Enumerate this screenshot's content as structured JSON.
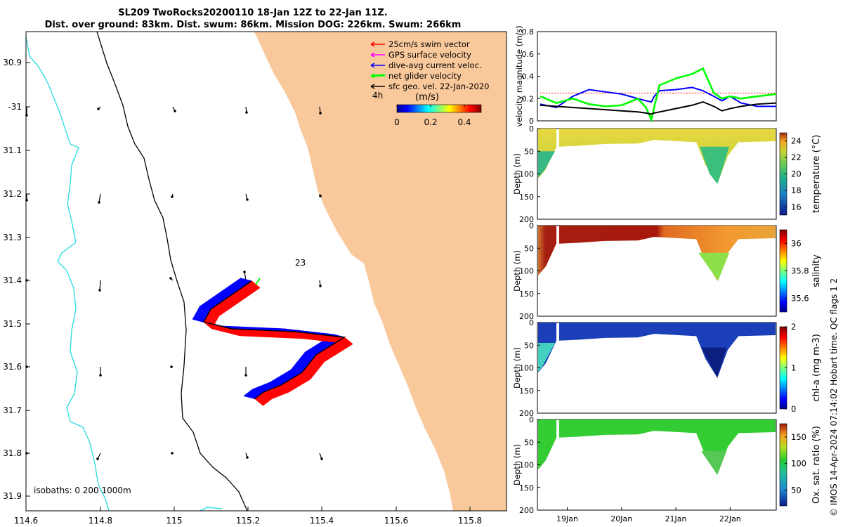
{
  "title": {
    "line1": "SL209 TwoRocks20200110 18-Jan 12Z to 22-Jan 11Z.",
    "line2": "Dist. over ground: 83km. Dist. swum: 86km. Mission DOG: 226km. Swum: 266km"
  },
  "credit": "© IMOS 14-Apr-2024 07:14:02 Hobart time. QC flags 1  2",
  "colors": {
    "land": "#f9c89b",
    "isobath_200": "#000000",
    "isobath_1000": "#000000",
    "isobath_deep": "#33dde0",
    "swim": "#ff0000",
    "gps": "#ff00ff",
    "dive_avg": "#0000ff",
    "net": "#00ff00",
    "sfc_geo": "#000000"
  },
  "map": {
    "lon_ticks": [
      "114.6",
      "114.8",
      "115",
      "115.2",
      "115.4",
      "115.6",
      "115.8"
    ],
    "lat_ticks": [
      "30.9",
      "-31",
      "31.1",
      "31.2",
      "31.3",
      "31.4",
      "31.5",
      "31.6",
      "31.7",
      "31.8",
      "31.9"
    ],
    "xlim": [
      114.6,
      115.9
    ],
    "ylim": [
      -31.93,
      -30.83
    ],
    "label_4h": "4h",
    "label_23": "23",
    "isobath_text": "isobaths: 0   200  1000m",
    "legend": [
      {
        "label": "25cm/s swim vector",
        "key": "swim"
      },
      {
        "label": "GPS surface velocity",
        "key": "gps"
      },
      {
        "label": "dive-avg current veloc.",
        "key": "dive_avg"
      },
      {
        "label": "net glider velocity",
        "key": "net"
      },
      {
        "label": "sfc geo. vel. 22-Jan-2020",
        "key": "sfc_geo"
      }
    ],
    "colorbar": {
      "label": "(m/s)",
      "ticks": [
        "0",
        "0.2",
        "0.4"
      ],
      "range": [
        0,
        0.5
      ]
    }
  },
  "chart_data": [
    {
      "type": "line",
      "ylabel": "velocity magnitude (m/s)",
      "ylim": [
        0,
        0.8
      ],
      "yticks": [
        "0",
        "0.2",
        "0.4",
        "0.6",
        "0.8"
      ],
      "x": [
        18.5,
        18.8,
        19.1,
        19.4,
        19.7,
        20.0,
        20.3,
        20.45,
        20.55,
        20.6,
        20.7,
        21.0,
        21.3,
        21.5,
        21.7,
        21.85,
        22.0,
        22.2,
        22.5,
        22.85
      ],
      "series": [
        {
          "key": "swim",
          "values": [
            0.25,
            0.25,
            0.25,
            0.25,
            0.25,
            0.25,
            0.25,
            0.25,
            0.25,
            0.25,
            0.25,
            0.25,
            0.25,
            0.25,
            0.25,
            0.25,
            0.25,
            0.25,
            0.25,
            0.25
          ]
        },
        {
          "key": "dive_avg",
          "values": [
            0.15,
            0.12,
            0.22,
            0.28,
            0.26,
            0.24,
            0.2,
            0.18,
            0.17,
            0.22,
            0.27,
            0.28,
            0.3,
            0.27,
            0.22,
            0.18,
            0.22,
            0.16,
            0.13,
            0.13
          ]
        },
        {
          "key": "net",
          "values": [
            0.22,
            0.16,
            0.2,
            0.15,
            0.13,
            0.14,
            0.2,
            0.12,
            0.01,
            0.12,
            0.32,
            0.38,
            0.42,
            0.47,
            0.25,
            0.2,
            0.22,
            0.2,
            0.22,
            0.24
          ]
        },
        {
          "key": "sfc_geo",
          "values": [
            0.14,
            0.13,
            0.12,
            0.11,
            0.1,
            0.09,
            0.08,
            0.07,
            0.06,
            0.07,
            0.08,
            0.11,
            0.14,
            0.17,
            0.13,
            0.09,
            0.11,
            0.13,
            0.15,
            0.16
          ]
        }
      ]
    },
    {
      "type": "heatmap",
      "variable": "temperature",
      "ylabel": "Depth (m)",
      "cbar_label": "temperature (°C)",
      "cbar_ticks": [
        "16",
        "18",
        "20",
        "22",
        "24"
      ],
      "crange": [
        15,
        25
      ]
    },
    {
      "type": "heatmap",
      "variable": "salinity",
      "ylabel": "Depth (m)",
      "cbar_label": "salinity",
      "cbar_ticks": [
        "35.6",
        "35.8",
        "36"
      ],
      "crange": [
        35.5,
        36.1
      ]
    },
    {
      "type": "heatmap",
      "variable": "chl-a",
      "ylabel": "Depth (m)",
      "cbar_label": "chl-a (mg m-3)",
      "cbar_ticks": [
        "0",
        "1",
        "2"
      ],
      "crange": [
        0,
        2
      ]
    },
    {
      "type": "heatmap",
      "variable": "oxygen",
      "ylabel": "Depth (m)",
      "cbar_label": "Ox. sat. ratio (%)",
      "cbar_ticks": [
        "50",
        "100",
        "150"
      ],
      "crange": [
        20,
        175
      ]
    }
  ],
  "section_depth_ticks": [
    "0",
    "50",
    "100",
    "150",
    "200"
  ],
  "section_depth_range": [
    0,
    200
  ],
  "time_ticks": [
    "19Jan",
    "20Jan",
    "21Jan",
    "22Jan"
  ]
}
